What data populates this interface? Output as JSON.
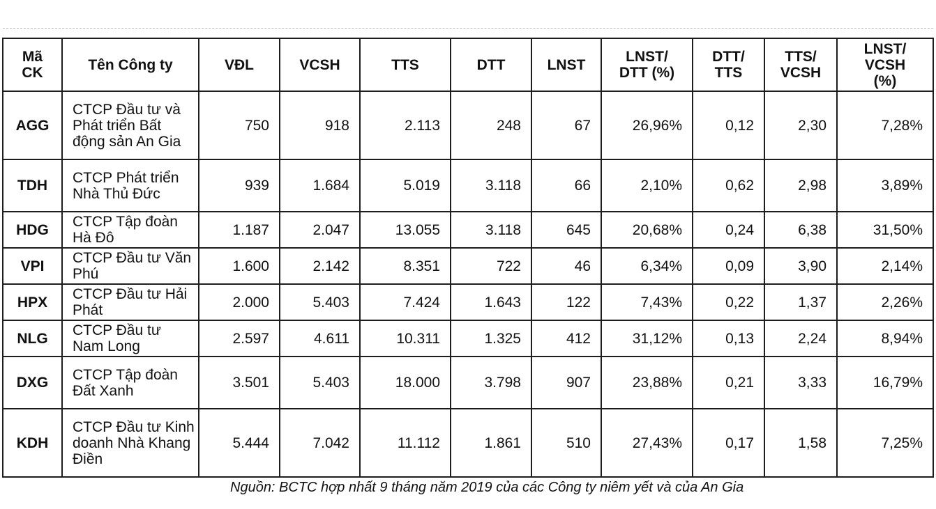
{
  "table": {
    "headers": [
      "Mã\nCK",
      "Tên Công ty",
      "VĐL",
      "VCSH",
      "TTS",
      "DTT",
      "LNST",
      "LNST/\nDTT (%)",
      "DTT/\nTTS",
      "TTS/\nVCSH",
      "LNST/\nVCSH\n(%)"
    ],
    "rows": [
      {
        "code": "AGG",
        "name": "CTCP Đầu tư và Phát triển Bất động sản An Gia",
        "vdl": "750",
        "vcsh": "918",
        "tts": "2.113",
        "dtt": "248",
        "lnst": "67",
        "lnst_dtt": "26,96%",
        "dtt_tts": "0,12",
        "tts_vcsh": "2,30",
        "lnst_vcsh": "7,28%"
      },
      {
        "code": "TDH",
        "name": "CTCP Phát triển Nhà Thủ Đức",
        "vdl": "939",
        "vcsh": "1.684",
        "tts": "5.019",
        "dtt": "3.118",
        "lnst": "66",
        "lnst_dtt": "2,10%",
        "dtt_tts": "0,62",
        "tts_vcsh": "2,98",
        "lnst_vcsh": "3,89%"
      },
      {
        "code": "HDG",
        "name": "CTCP Tập đoàn Hà Đô",
        "vdl": "1.187",
        "vcsh": "2.047",
        "tts": "13.055",
        "dtt": "3.118",
        "lnst": "645",
        "lnst_dtt": "20,68%",
        "dtt_tts": "0,24",
        "tts_vcsh": "6,38",
        "lnst_vcsh": "31,50%"
      },
      {
        "code": "VPI",
        "name": "CTCP Đầu tư Văn Phú",
        "vdl": "1.600",
        "vcsh": "2.142",
        "tts": "8.351",
        "dtt": "722",
        "lnst": "46",
        "lnst_dtt": "6,34%",
        "dtt_tts": "0,09",
        "tts_vcsh": "3,90",
        "lnst_vcsh": "2,14%"
      },
      {
        "code": "HPX",
        "name": "CTCP Đầu tư Hải Phát",
        "vdl": "2.000",
        "vcsh": "5.403",
        "tts": "7.424",
        "dtt": "1.643",
        "lnst": "122",
        "lnst_dtt": "7,43%",
        "dtt_tts": "0,22",
        "tts_vcsh": "1,37",
        "lnst_vcsh": "2,26%"
      },
      {
        "code": "NLG",
        "name": "CTCP Đầu tư Nam Long",
        "vdl": "2.597",
        "vcsh": "4.611",
        "tts": "10.311",
        "dtt": "1.325",
        "lnst": "412",
        "lnst_dtt": "31,12%",
        "dtt_tts": "0,13",
        "tts_vcsh": "2,24",
        "lnst_vcsh": "8,94%"
      },
      {
        "code": "DXG",
        "name": "CTCP Tập đoàn Đất Xanh",
        "vdl": "3.501",
        "vcsh": "5.403",
        "tts": "18.000",
        "dtt": "3.798",
        "lnst": "907",
        "lnst_dtt": "23,88%",
        "dtt_tts": "0,21",
        "tts_vcsh": "3,33",
        "lnst_vcsh": "16,79%"
      },
      {
        "code": "KDH",
        "name": "CTCP Đầu tư Kinh doanh Nhà Khang Điền",
        "vdl": "5.444",
        "vcsh": "7.042",
        "tts": "11.112",
        "dtt": "1.861",
        "lnst": "510",
        "lnst_dtt": "27,43%",
        "dtt_tts": "0,17",
        "tts_vcsh": "1,58",
        "lnst_vcsh": "7,25%"
      }
    ]
  },
  "source_note": "Nguồn: BCTC hợp nhất 9 tháng năm 2019 của các Công ty niêm yết và của An Gia"
}
